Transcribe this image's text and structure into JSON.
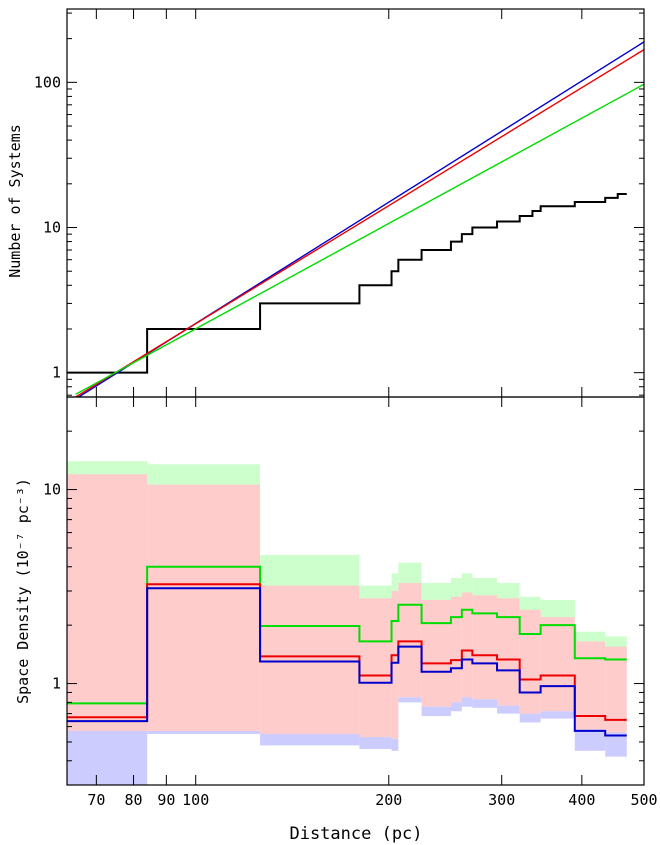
{
  "chart_data": [
    {
      "type": "line",
      "panel": "top",
      "xlabel": "",
      "ylabel": "Number of Systems",
      "xscale": "log",
      "yscale": "log",
      "xlim": [
        63,
        500
      ],
      "ylim": [
        0.68,
        320
      ],
      "x_ticks": [
        70,
        80,
        90,
        100,
        200,
        300,
        400,
        500
      ],
      "y_ticks": [
        1,
        10,
        100
      ],
      "y_tick_labels": [
        "1",
        "10",
        "100"
      ],
      "series": [
        {
          "kind": "step",
          "color": "#000000",
          "x": [
            63,
            84,
            84,
            126,
            126,
            180,
            180,
            202,
            202,
            207,
            207,
            225,
            225,
            250,
            250,
            260,
            260,
            270,
            270,
            295,
            295,
            320,
            320,
            335,
            335,
            345,
            345,
            390,
            390,
            435,
            435,
            455,
            455,
            470
          ],
          "y": [
            1,
            1,
            2,
            2,
            3,
            3,
            4,
            4,
            5,
            5,
            6,
            6,
            7,
            7,
            8,
            8,
            9,
            9,
            10,
            10,
            11,
            11,
            12,
            12,
            13,
            13,
            14,
            14,
            15,
            15,
            16,
            16,
            17,
            17
          ]
        },
        {
          "kind": "line",
          "color": "#0000cc",
          "x": [
            65,
            500
          ],
          "y": [
            0.66,
            190
          ]
        },
        {
          "kind": "line",
          "color": "#ee0000",
          "x": [
            65,
            500
          ],
          "y": [
            0.68,
            168
          ]
        },
        {
          "kind": "line",
          "color": "#00dd00",
          "x": [
            65,
            500
          ],
          "y": [
            0.71,
            97
          ]
        }
      ]
    },
    {
      "type": "line",
      "panel": "bottom",
      "xlabel": "Distance (pc)",
      "ylabel": "Space Density (10⁻⁷ pc⁻³)",
      "xscale": "log",
      "yscale": "log",
      "xlim": [
        63,
        500
      ],
      "ylim": [
        0.3,
        30
      ],
      "x_ticks": [
        70,
        80,
        90,
        100,
        200,
        300,
        400,
        500
      ],
      "x_tick_labels": [
        "70",
        "80",
        "90",
        "100",
        "200",
        "300",
        "400",
        "500"
      ],
      "y_ticks": [
        1,
        10
      ],
      "y_tick_labels": [
        "1",
        "10"
      ],
      "bin_edges": [
        63,
        84,
        126,
        180,
        202,
        207,
        225,
        250,
        260,
        270,
        295,
        320,
        345,
        390,
        435,
        470
      ],
      "series": [
        {
          "kind": "step",
          "color": "#00dd00",
          "values": [
            0.79,
            4.0,
            1.98,
            1.65,
            2.1,
            2.55,
            2.05,
            2.2,
            2.4,
            2.3,
            2.2,
            1.8,
            2.0,
            1.35,
            1.33
          ],
          "band_lower": [
            0.79,
            4.0,
            1.98,
            1.65,
            2.1,
            2.55,
            2.05,
            2.2,
            2.4,
            2.3,
            2.2,
            1.8,
            2.0,
            1.35,
            1.33
          ],
          "band_upper": [
            14.0,
            13.5,
            4.6,
            3.2,
            3.7,
            4.2,
            3.3,
            3.5,
            3.7,
            3.5,
            3.3,
            2.8,
            2.7,
            1.85,
            1.75
          ]
        },
        {
          "kind": "step",
          "color": "#ee0000",
          "values": [
            0.67,
            3.25,
            1.38,
            1.1,
            1.4,
            1.65,
            1.27,
            1.32,
            1.48,
            1.4,
            1.33,
            1.05,
            1.1,
            0.68,
            0.65
          ],
          "band_lower": [
            0.3,
            0.57,
            0.55,
            0.53,
            0.52,
            0.85,
            0.76,
            0.8,
            0.85,
            0.83,
            0.77,
            0.7,
            0.72,
            0.58,
            0.56
          ],
          "band_upper": [
            12.0,
            10.6,
            3.2,
            2.75,
            3.0,
            3.3,
            2.7,
            2.8,
            2.95,
            2.85,
            2.75,
            2.4,
            2.2,
            1.65,
            1.55
          ]
        },
        {
          "kind": "step",
          "color": "#0000cc",
          "values": [
            0.64,
            3.1,
            1.3,
            1.01,
            1.28,
            1.55,
            1.15,
            1.2,
            1.33,
            1.27,
            1.17,
            0.9,
            0.97,
            0.57,
            0.54
          ],
          "band_lower": [
            0.3,
            0.55,
            0.48,
            0.46,
            0.45,
            0.8,
            0.68,
            0.72,
            0.76,
            0.75,
            0.7,
            0.63,
            0.66,
            0.45,
            0.42
          ],
          "band_upper": [
            0.57,
            0.57,
            0.55,
            0.53,
            0.52,
            0.85,
            0.76,
            0.8,
            0.85,
            0.83,
            0.77,
            0.7,
            0.72,
            0.58,
            0.56
          ]
        }
      ]
    }
  ]
}
